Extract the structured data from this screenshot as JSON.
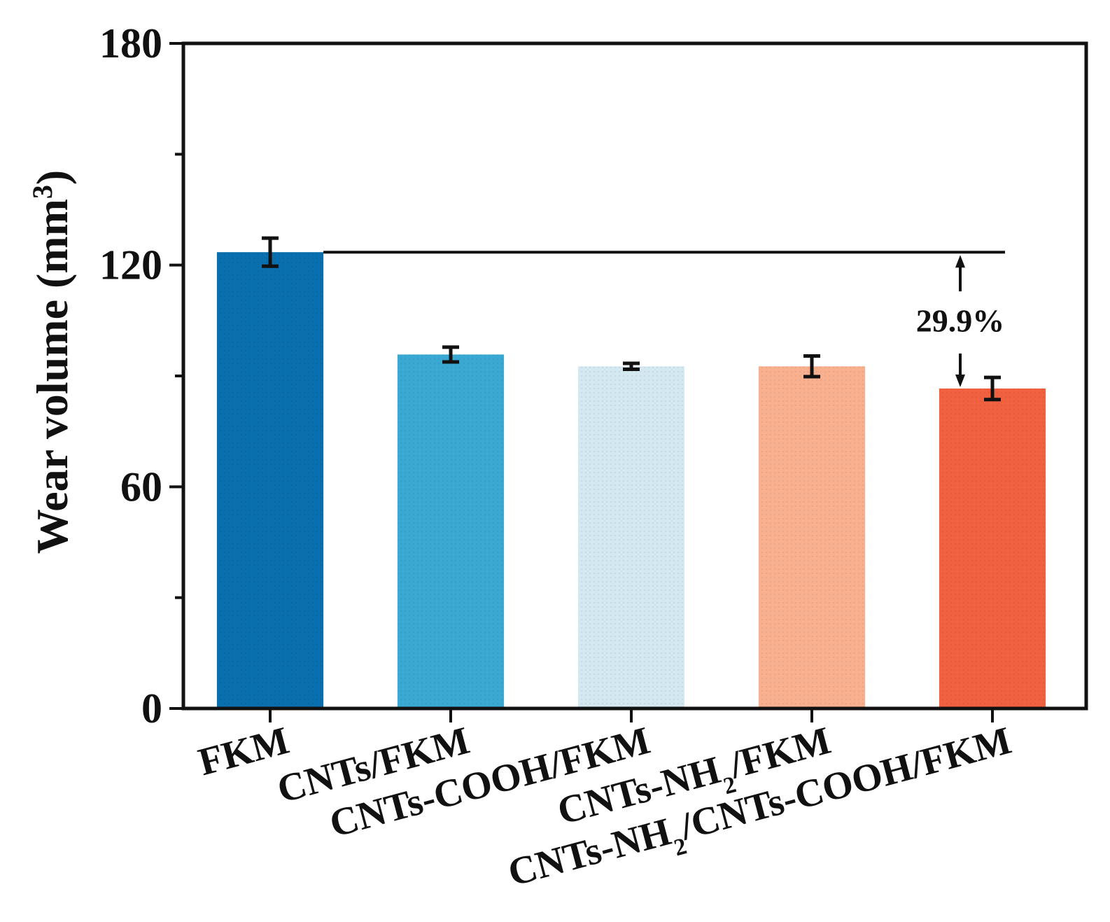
{
  "chart_data": {
    "type": "bar",
    "categories": [
      {
        "label": "FKM",
        "parts": [
          {
            "t": "FKM"
          }
        ]
      },
      {
        "label": "CNTs/FKM",
        "parts": [
          {
            "t": "CNTs/FKM"
          }
        ]
      },
      {
        "label": "CNTs-COOH/FKM",
        "parts": [
          {
            "t": "CNTs-COOH/FKM"
          }
        ]
      },
      {
        "label": "CNTs-NH2/FKM",
        "parts": [
          {
            "t": "CNTs-NH"
          },
          {
            "t": "2",
            "sub": true
          },
          {
            "t": "/FKM"
          }
        ]
      },
      {
        "label": "CNTs-NH2/CNTs-COOH/FKM",
        "parts": [
          {
            "t": "CNTs-NH"
          },
          {
            "t": "2",
            "sub": true
          },
          {
            "t": "/CNTs-COOH/FKM"
          }
        ]
      }
    ],
    "values": [
      123.5,
      95.8,
      92.6,
      92.6,
      86.6
    ],
    "errors": [
      3.8,
      2.0,
      0.8,
      2.8,
      3.0
    ],
    "colors": [
      "#0a6fae",
      "#39a9d4",
      "#d4e8f1",
      "#f9b08f",
      "#f2613f"
    ],
    "ylabel_parts": [
      {
        "t": "Wear volume (mm"
      },
      {
        "t": "3",
        "sup": true
      },
      {
        "t": ")"
      }
    ],
    "ylim": [
      0,
      180
    ],
    "yticks": [
      0,
      60,
      120,
      180
    ],
    "y_minor_step": 30,
    "grid": false,
    "annotations": [
      {
        "text": "29.9%",
        "from_category": 0,
        "to_category": 4,
        "from_value": 123.5,
        "to_value": 86.6
      }
    ]
  }
}
